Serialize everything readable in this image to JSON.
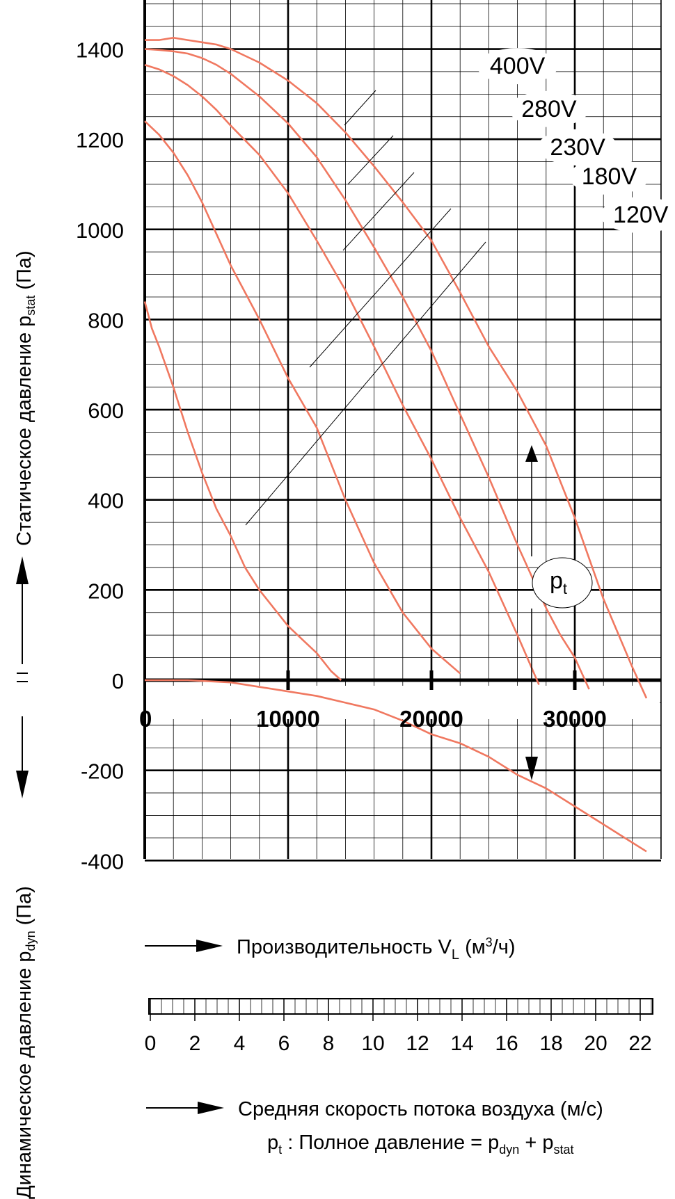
{
  "labels": {
    "y_upper_label_main": "Статическое давление p",
    "y_upper_label_sub": "stat",
    "y_upper_label_unit": " (Па)",
    "y_lower_label_main": "Динамическое давление p",
    "y_lower_label_sub": "dyn",
    "y_lower_label_unit": " (Па)",
    "x_label_main": "Производительность V",
    "x_label_sub": "L",
    "x_label_unit": " (м",
    "x_label_sup": "3",
    "x_label_unit2": "/ч)",
    "velocity_label": "Средняя скорость потока воздуха (м/с)",
    "formula_p": "p",
    "formula_t": "t",
    "formula_mid": " : Полное давление = p",
    "formula_dyn": "dyn",
    "formula_plus": " + p",
    "formula_stat": "stat",
    "pt_badge_p": "p",
    "pt_badge_t": "t"
  },
  "colors": {
    "curve": "#f07860",
    "grid_minor": "#000000",
    "grid_major": "#000000",
    "axis": "#000000"
  },
  "chart_data": {
    "type": "line",
    "xlim": [
      0,
      36000
    ],
    "ylim": [
      -400,
      1500
    ],
    "x_ticks": [
      {
        "value": 0,
        "label": "0"
      },
      {
        "value": 10000,
        "label": "10000"
      },
      {
        "value": 20000,
        "label": "20000"
      },
      {
        "value": 30000,
        "label": "30000"
      }
    ],
    "y_ticks": [
      {
        "value": 1400,
        "label": "1400"
      },
      {
        "value": 1200,
        "label": "1200"
      },
      {
        "value": 1000,
        "label": "1000"
      },
      {
        "value": 800,
        "label": "800"
      },
      {
        "value": 600,
        "label": "600"
      },
      {
        "value": 400,
        "label": "400"
      },
      {
        "value": 200,
        "label": "200"
      },
      {
        "value": 0,
        "label": "0"
      },
      {
        "value": -200,
        "label": "-200"
      },
      {
        "value": -400,
        "label": "-400"
      }
    ],
    "velocity_ticks": [
      "0",
      "2",
      "4",
      "6",
      "8",
      "10",
      "12",
      "14",
      "16",
      "18",
      "20",
      "22"
    ],
    "velocity_max": 22.5,
    "grid": true,
    "series": [
      {
        "name": "400V",
        "label_x": 26000,
        "label_y": 1345,
        "x": [
          0,
          1000,
          2000,
          3000,
          4000,
          5000,
          6000,
          8000,
          10000,
          12000,
          14000,
          16000,
          18000,
          20000,
          22000,
          24000,
          26000,
          28000,
          30000,
          32000,
          34000,
          35000
        ],
        "y": [
          1420,
          1420,
          1425,
          1420,
          1415,
          1410,
          1400,
          1370,
          1330,
          1280,
          1215,
          1140,
          1060,
          975,
          860,
          740,
          640,
          520,
          360,
          180,
          30,
          -40
        ]
      },
      {
        "name": "280V",
        "label_x": 28200,
        "label_y": 1250,
        "x": [
          0,
          1000,
          2000,
          3000,
          4000,
          5000,
          6000,
          8000,
          10000,
          12000,
          14000,
          16000,
          18000,
          20000,
          22000,
          24000,
          26000,
          28000,
          29000,
          30000,
          31000
        ],
        "y": [
          1400,
          1398,
          1395,
          1390,
          1380,
          1365,
          1345,
          1295,
          1235,
          1160,
          1065,
          960,
          850,
          730,
          590,
          450,
          300,
          160,
          100,
          50,
          -20
        ]
      },
      {
        "name": "230V",
        "label_x": 30200,
        "label_y": 1165,
        "x": [
          0,
          1000,
          2000,
          3000,
          4000,
          5000,
          6000,
          8000,
          10000,
          12000,
          14000,
          16000,
          18000,
          20000,
          22000,
          24000,
          26000,
          27500
        ],
        "y": [
          1365,
          1355,
          1340,
          1320,
          1295,
          1265,
          1230,
          1165,
          1080,
          975,
          865,
          740,
          610,
          490,
          360,
          240,
          100,
          -10
        ]
      },
      {
        "name": "180V",
        "label_x": 32400,
        "label_y": 1100,
        "x": [
          0,
          1000,
          2000,
          3000,
          4000,
          5000,
          6000,
          7000,
          8000,
          10000,
          12000,
          14000,
          16000,
          18000,
          20000,
          22000
        ],
        "y": [
          1240,
          1210,
          1170,
          1120,
          1060,
          990,
          920,
          860,
          800,
          670,
          560,
          400,
          260,
          150,
          70,
          15
        ]
      },
      {
        "name": "120V",
        "label_x": 34600,
        "label_y": 1015,
        "x": [
          0,
          500,
          1000,
          2000,
          3000,
          4000,
          5000,
          6000,
          7000,
          8000,
          9000,
          10000,
          11000,
          12000,
          13000,
          13700
        ],
        "y": [
          840,
          780,
          740,
          650,
          550,
          460,
          380,
          320,
          250,
          200,
          160,
          120,
          90,
          60,
          20,
          0
        ]
      },
      {
        "name": "p_dyn",
        "x": [
          0,
          3000,
          6000,
          8000,
          10000,
          12000,
          14000,
          16000,
          18000,
          20000,
          22000,
          24000,
          26000,
          28000,
          30000,
          32000,
          34000,
          35000
        ],
        "y": [
          0,
          0,
          -5,
          -15,
          -25,
          -35,
          -50,
          -65,
          -90,
          -120,
          -140,
          -170,
          -210,
          -240,
          -280,
          -320,
          -360,
          -380
        ]
      }
    ]
  }
}
